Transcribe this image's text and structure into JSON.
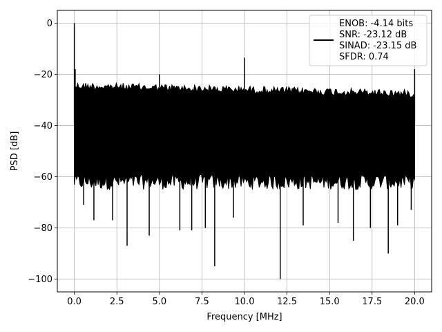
{
  "chart_data": {
    "type": "line",
    "xlabel": "Frequency [MHz]",
    "ylabel": "PSD [dB]",
    "xlim": [
      -1.0,
      21.0
    ],
    "ylim": [
      -105.0,
      5.0
    ],
    "xticks": [
      0.0,
      2.5,
      5.0,
      7.5,
      10.0,
      12.5,
      15.0,
      17.5,
      20.0
    ],
    "xtick_labels": [
      "0.0",
      "2.5",
      "5.0",
      "7.5",
      "10.0",
      "12.5",
      "15.0",
      "17.5",
      "20.0"
    ],
    "yticks": [
      0,
      -20,
      -40,
      -60,
      -80,
      -100
    ],
    "ytick_labels": [
      "0",
      "−20",
      "−40",
      "−60",
      "−80",
      "−100"
    ],
    "grid": true,
    "legend_position": "top-right",
    "legend_lines": [
      "ENOB: -4.14 bits",
      "SNR: -23.12 dB",
      "SINAD: -23.15 dB",
      "SFDR: 0.74"
    ],
    "line_color": "#000000",
    "series": [
      {
        "x_range": [
          0.0,
          20.0
        ],
        "noise_floor_range": [
          -65,
          -23
        ],
        "peaks": [
          {
            "x": 0.0,
            "y": 0
          },
          {
            "x": 0.05,
            "y": -18
          },
          {
            "x": 5.0,
            "y": -20
          },
          {
            "x": 10.0,
            "y": -13.5
          },
          {
            "x": 20.0,
            "y": -18
          }
        ],
        "dips": [
          {
            "x": 0.55,
            "y": -71
          },
          {
            "x": 1.15,
            "y": -77
          },
          {
            "x": 2.25,
            "y": -77
          },
          {
            "x": 3.1,
            "y": -87
          },
          {
            "x": 4.4,
            "y": -83
          },
          {
            "x": 6.2,
            "y": -81
          },
          {
            "x": 6.9,
            "y": -81
          },
          {
            "x": 7.7,
            "y": -80
          },
          {
            "x": 8.25,
            "y": -95
          },
          {
            "x": 9.35,
            "y": -76
          },
          {
            "x": 12.1,
            "y": -100
          },
          {
            "x": 13.45,
            "y": -79
          },
          {
            "x": 15.5,
            "y": -78
          },
          {
            "x": 16.4,
            "y": -85
          },
          {
            "x": 17.4,
            "y": -80
          },
          {
            "x": 18.45,
            "y": -90
          },
          {
            "x": 19.0,
            "y": -79
          },
          {
            "x": 19.8,
            "y": -73
          }
        ]
      }
    ]
  }
}
